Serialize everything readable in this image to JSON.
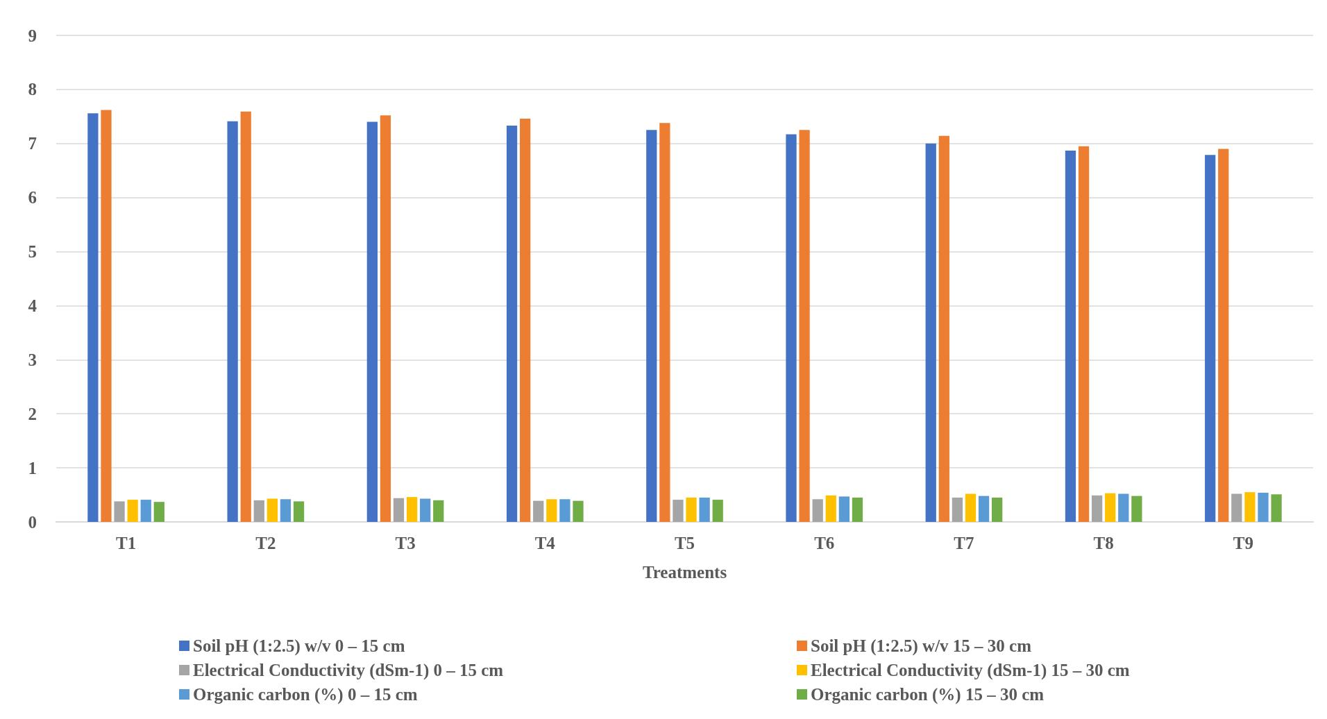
{
  "chart_data": {
    "type": "bar",
    "xlabel": "Treatments",
    "categories": [
      "T1",
      "T2",
      "T3",
      "T4",
      "T5",
      "T6",
      "T7",
      "T8",
      "T9"
    ],
    "series": [
      {
        "name": "Soil pH (1:2.5) w/v 0 – 15 cm",
        "color": "#4472c4",
        "values": [
          7.56,
          7.41,
          7.4,
          7.33,
          7.25,
          7.17,
          7.0,
          6.87,
          6.79
        ]
      },
      {
        "name": "Soil pH (1:2.5) w/v 15 – 30 cm",
        "color": "#ed7d31",
        "values": [
          7.62,
          7.59,
          7.52,
          7.46,
          7.38,
          7.25,
          7.14,
          6.95,
          6.9
        ]
      },
      {
        "name": "Electrical Conductivity (dSm-1) 0 – 15 cm",
        "color": "#a5a5a5",
        "values": [
          0.38,
          0.4,
          0.44,
          0.39,
          0.41,
          0.42,
          0.45,
          0.49,
          0.52
        ]
      },
      {
        "name": "Electrical Conductivity (dSm-1) 15 – 30 cm",
        "color": "#ffc000",
        "values": [
          0.41,
          0.43,
          0.46,
          0.42,
          0.45,
          0.49,
          0.52,
          0.53,
          0.55
        ]
      },
      {
        "name": "Organic carbon (%) 0 – 15 cm",
        "color": "#5b9bd5",
        "values": [
          0.41,
          0.42,
          0.43,
          0.42,
          0.45,
          0.47,
          0.48,
          0.52,
          0.54
        ]
      },
      {
        "name": "Organic carbon (%) 15 – 30 cm",
        "color": "#70ad47",
        "values": [
          0.37,
          0.38,
          0.4,
          0.39,
          0.41,
          0.45,
          0.45,
          0.48,
          0.51
        ]
      }
    ],
    "ylim": [
      0,
      9
    ],
    "yticks": [
      0,
      1,
      2,
      3,
      4,
      5,
      6,
      7,
      8,
      9
    ],
    "grid": "y",
    "legend": "bottom"
  }
}
